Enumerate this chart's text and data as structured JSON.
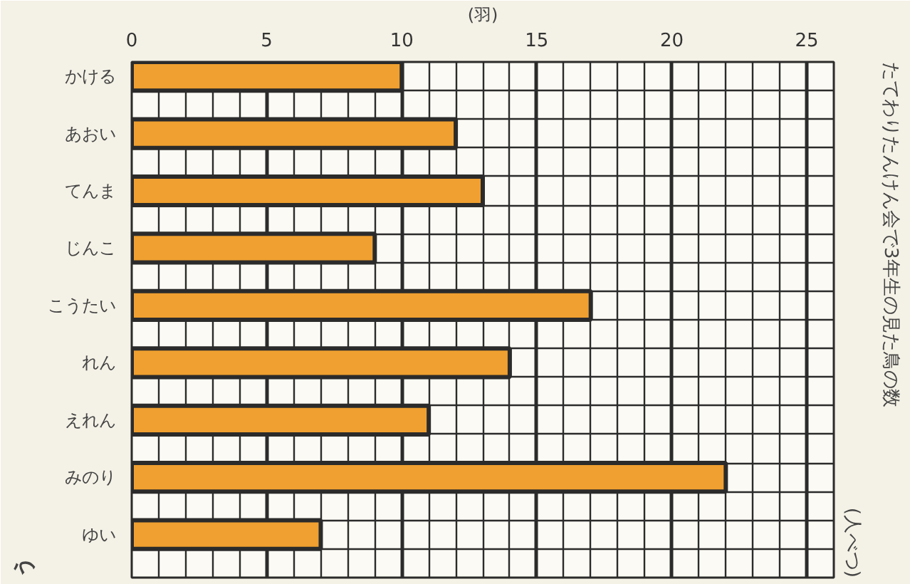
{
  "chart_data": {
    "type": "bar",
    "orientation": "horizontal",
    "title": "たてわりたんけん会で3年生の見た鳥の数",
    "subtitle": "(人べつ)",
    "xlabel": "(羽)",
    "annotations": [
      "う"
    ],
    "categories": [
      "かける",
      "あおい",
      "てんま",
      "じんこ",
      "こうたい",
      "れん",
      "えれん",
      "みのり",
      "ゆい"
    ],
    "values": [
      10,
      12,
      13,
      9,
      17,
      14,
      11,
      22,
      7
    ],
    "color": "#f0a030",
    "xlim": [
      0,
      26
    ],
    "xticks": [
      0,
      5,
      10,
      15,
      20,
      25
    ],
    "grid": true
  }
}
